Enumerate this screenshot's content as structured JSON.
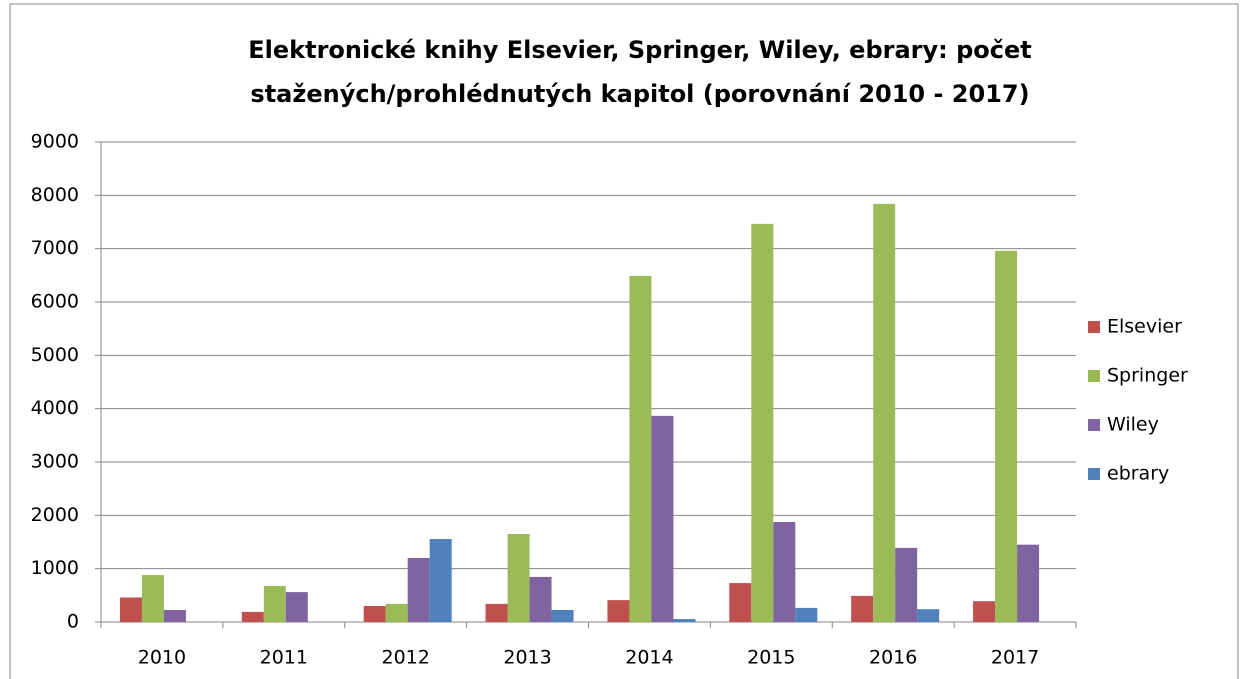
{
  "chart_data": {
    "type": "bar",
    "title": [
      "Elektronické knihy Elsevier, Springer, Wiley, ebrary: počet",
      "stažených/prohlédnutých kapitol (porovnání 2010 - 2017)"
    ],
    "categories": [
      "2010",
      "2011",
      "2012",
      "2013",
      "2014",
      "2015",
      "2016",
      "2017"
    ],
    "series": [
      {
        "name": "Elsevier",
        "color": "#c0504d",
        "values": [
          460,
          190,
          300,
          340,
          410,
          730,
          490,
          390
        ]
      },
      {
        "name": "Springer",
        "color": "#9bbb59",
        "values": [
          880,
          675,
          340,
          1650,
          6490,
          7465,
          7840,
          6960
        ]
      },
      {
        "name": "Wiley",
        "color": "#8064a2",
        "values": [
          225,
          560,
          1200,
          845,
          3865,
          1875,
          1390,
          1450
        ]
      },
      {
        "name": "ebrary",
        "color": "#4f81bd",
        "values": [
          0,
          0,
          1555,
          225,
          55,
          265,
          240,
          0
        ]
      }
    ],
    "ylim": [
      0,
      9000
    ],
    "yticks": [
      0,
      1000,
      2000,
      3000,
      4000,
      5000,
      6000,
      7000,
      8000,
      9000
    ],
    "grid": true,
    "legend": "right"
  }
}
